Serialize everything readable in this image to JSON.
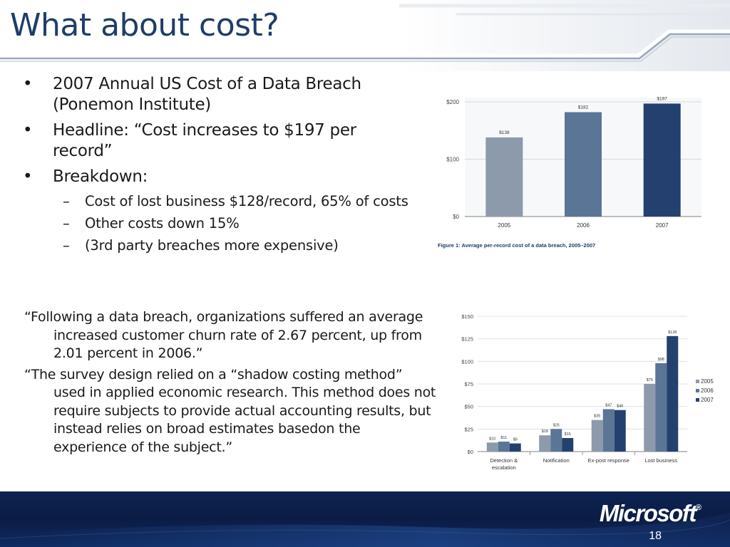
{
  "slide": {
    "title": "What about cost?",
    "page_number": "18",
    "logo_text": "Microsoft",
    "logo_mark": "®"
  },
  "colors": {
    "title": "#1F3D68",
    "footer": "#0B1E44",
    "series_2005": "#8C9AAB",
    "series_2006": "#5A7595",
    "series_2007": "#24406F"
  },
  "bullets": [
    {
      "level": 1,
      "marker": "•",
      "text": "2007 Annual US Cost of a Data Breach (Ponemon Institute)"
    },
    {
      "level": 1,
      "marker": "•",
      "text": "Headline: “Cost increases to $197 per record”"
    },
    {
      "level": 1,
      "marker": "•",
      "text": "Breakdown:"
    },
    {
      "level": 2,
      "marker": "–",
      "text": "Cost of lost business $128/record, 65% of costs"
    },
    {
      "level": 2,
      "marker": "–",
      "text": "Other costs down 15%"
    },
    {
      "level": 2,
      "marker": "–",
      "text": "(3rd party breaches more expensive)"
    }
  ],
  "quotes": [
    "“Following a data breach, organizations suffered an average increased customer churn rate of 2.67 percent, up from 2.01 percent in 2006.”",
    "“The survey design relied on a “shadow costing method” used in applied economic research. This method does not require subjects to provide actual accounting results, but instead relies on broad estimates basedon the experience of the subject.”"
  ],
  "chart_data": [
    {
      "type": "bar",
      "title": "",
      "caption": "Figure 1: Average per-record cost of a data breach, 2005–2007",
      "categories": [
        "2005",
        "2006",
        "2007"
      ],
      "values": [
        138,
        182,
        197
      ],
      "value_labels": [
        "$138",
        "$182",
        "$197"
      ],
      "yticks": [
        "$0",
        "$100",
        "$200"
      ],
      "ytick_values": [
        0,
        100,
        200
      ],
      "ylim": [
        0,
        200
      ],
      "xlabel": "",
      "ylabel": "",
      "grid": true
    },
    {
      "type": "bar",
      "title": "",
      "categories": [
        "Detection & escalation",
        "Notification",
        "Ex-post response",
        "Lost business"
      ],
      "category_lines": [
        [
          "Detection &",
          "escalation"
        ],
        [
          "Notification"
        ],
        [
          "Ex-post response"
        ],
        [
          "Lost business"
        ]
      ],
      "series": [
        {
          "name": "2005",
          "values": [
            10,
            18,
            35,
            75
          ],
          "value_labels": [
            "$10",
            "$18",
            "$35",
            "$75"
          ]
        },
        {
          "name": "2006",
          "values": [
            11,
            25,
            47,
            98
          ],
          "value_labels": [
            "$11",
            "$25",
            "$47",
            "$98"
          ]
        },
        {
          "name": "2007",
          "values": [
            9,
            15,
            46,
            128
          ],
          "value_labels": [
            "$9",
            "$15",
            "$46",
            "$128"
          ]
        }
      ],
      "yticks": [
        "$0",
        "$25",
        "$50",
        "$75",
        "$100",
        "$125",
        "$150"
      ],
      "ytick_values": [
        0,
        25,
        50,
        75,
        100,
        125,
        150
      ],
      "ylim": [
        0,
        150
      ],
      "legend": "right",
      "grid": true,
      "xlabel": "",
      "ylabel": ""
    }
  ]
}
